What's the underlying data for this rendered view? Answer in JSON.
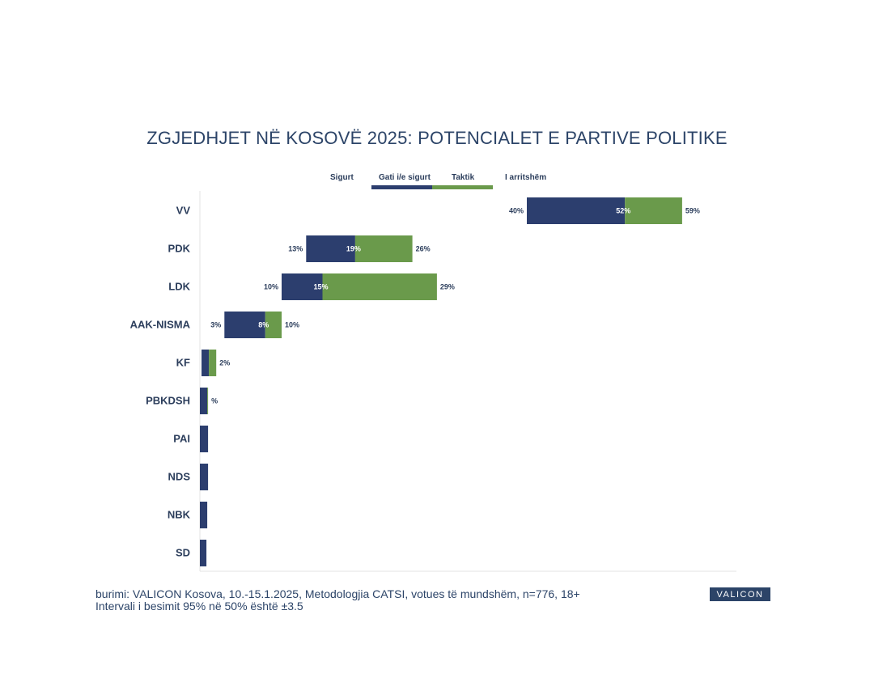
{
  "chart_data": {
    "type": "bar",
    "title": "ZGJEDHJET NË KOSOVË 2025: POTENCIALET E PARTIVE POLITIKE",
    "orientation": "horizontal-floating",
    "legend": {
      "placement": "top",
      "entries": [
        {
          "name": "Sigurt",
          "color": ""
        },
        {
          "name": "Gati i/e sigurt",
          "color": "#2c3e6e"
        },
        {
          "name": "Taktik",
          "color": "#6a9a4b"
        },
        {
          "name": "I arritshëm",
          "color": ""
        }
      ]
    },
    "colors": {
      "dark": "#2c3e6e",
      "green": "#6a9a4b"
    },
    "xlim": [
      0,
      100
    ],
    "categories": [
      "VV",
      "PDK",
      "LDK",
      "AAK-NISMA",
      "KF",
      "PBKDSH",
      "PAI",
      "NDS",
      "NBK",
      "SD"
    ],
    "rows": [
      {
        "category": "VV",
        "sigurt": 40,
        "gati": 52,
        "taktik": 59,
        "labels": [
          "40%",
          "52%",
          "59%"
        ]
      },
      {
        "category": "PDK",
        "sigurt": 13,
        "gati": 19,
        "taktik": 26,
        "labels": [
          "13%",
          "19%",
          "26%"
        ]
      },
      {
        "category": "LDK",
        "sigurt": 10,
        "gati": 15,
        "taktik": 29,
        "labels": [
          "10%",
          "15%",
          "29%"
        ]
      },
      {
        "category": "AAK-NISMA",
        "sigurt": 3,
        "gati": 8,
        "taktik": 10,
        "labels": [
          "3%",
          "8%",
          "10%"
        ]
      },
      {
        "category": "KF",
        "sigurt": 0.2,
        "gati": 1.1,
        "taktik": 2,
        "labels": [
          "",
          "",
          "2%"
        ]
      },
      {
        "category": "PBKDSH",
        "sigurt": 0,
        "gati": 0.9,
        "taktik": 1,
        "labels": [
          "",
          "",
          "%"
        ]
      },
      {
        "category": "PAI",
        "sigurt": 0,
        "gati": 1,
        "taktik": 1,
        "labels": [
          "",
          "",
          ""
        ]
      },
      {
        "category": "NDS",
        "sigurt": 0,
        "gati": 1,
        "taktik": 1,
        "labels": [
          "",
          "",
          ""
        ]
      },
      {
        "category": "NBK",
        "sigurt": 0,
        "gati": 0.9,
        "taktik": 0.9,
        "labels": [
          "",
          "",
          ""
        ]
      },
      {
        "category": "SD",
        "sigurt": 0,
        "gati": 0.8,
        "taktik": 0.8,
        "labels": [
          "",
          "",
          ""
        ]
      }
    ]
  },
  "footer": {
    "source_line1": "burimi: VALICON Kosova, 10.-15.1.2025, Metodologjia CATSI, votues të mundshëm, n=776, 18+",
    "source_line2": "Intervali i besimit 95% në 50% është ±3.5",
    "logo": "VALICON"
  }
}
